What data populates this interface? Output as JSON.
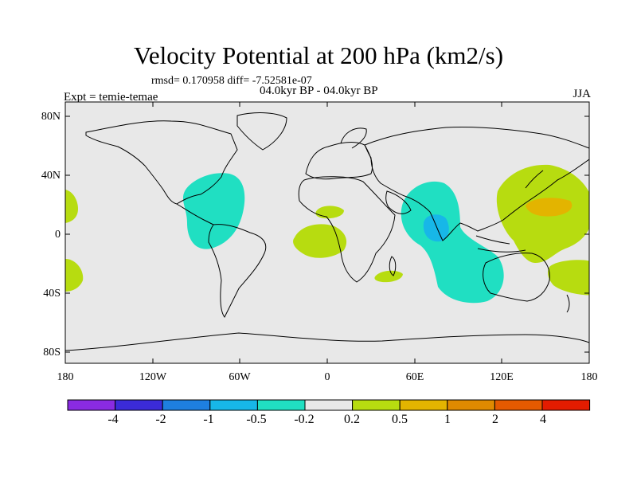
{
  "header": {
    "title": "Velocity Potential at 200 hPa (km2/s)",
    "stats": "rmsd= 0.170958 diff= -7.52581e-07",
    "subtitle": "04.0kyr BP - 04.0kyr BP",
    "experiment": "Expt = temie-temae",
    "season": "JJA"
  },
  "axes": {
    "lat_labels": [
      "80N",
      "40N",
      "0",
      "40S",
      "80S"
    ],
    "lon_labels": [
      "180",
      "120W",
      "60W",
      "0",
      "60E",
      "120E",
      "180"
    ]
  },
  "colorbar": {
    "colors": [
      "#8a2be2",
      "#3b2bd9",
      "#1e7fe0",
      "#17b7e8",
      "#20dfc2",
      "#e8e8e8",
      "#b7dc10",
      "#e3b400",
      "#e08a00",
      "#e55a00",
      "#e31c00"
    ],
    "labels": [
      "-4",
      "-2",
      "-1",
      "-0.5",
      "-0.2",
      "0.2",
      "0.5",
      "1",
      "2",
      "4"
    ]
  },
  "map_data": {
    "background_color": "#e8e8e8",
    "regions": [
      {
        "name": "caribbean-negative",
        "class": "-0.5 to -0.2"
      },
      {
        "name": "indian-ocean-negative",
        "class": "-0.5 to -0.2"
      },
      {
        "name": "india-core-negative",
        "class": "-1 to -0.5"
      },
      {
        "name": "west-pacific-positive",
        "class": "0.2 to 0.5"
      },
      {
        "name": "west-pacific-core",
        "class": "0.5 to 1"
      },
      {
        "name": "south-atlantic-positive",
        "class": "0.2 to 0.5"
      },
      {
        "name": "sahara-positive",
        "class": "0.2 to 0.5"
      },
      {
        "name": "madagascar-positive",
        "class": "0.2 to 0.5"
      },
      {
        "name": "east-pacific-positive",
        "class": "0.2 to 0.5"
      },
      {
        "name": "southwest-pacific-positive",
        "class": "0.2 to 0.5"
      }
    ]
  }
}
